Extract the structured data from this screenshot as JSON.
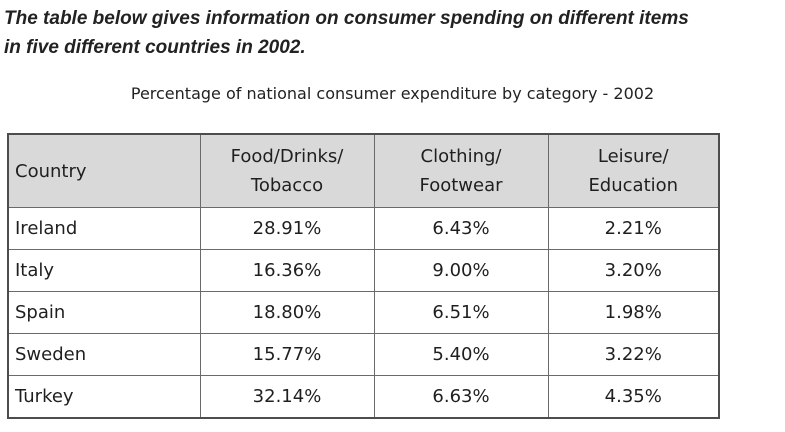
{
  "heading": {
    "line1": "The table below gives information on consumer spending on different items",
    "line2": "in five different countries in 2002."
  },
  "chart_data": {
    "type": "table",
    "title": "Percentage of national consumer expenditure by category - 2002",
    "columns": [
      {
        "line1": "Country",
        "line2": ""
      },
      {
        "line1": "Food/Drinks/",
        "line2": "Tobacco"
      },
      {
        "line1": "Clothing/",
        "line2": "Footwear"
      },
      {
        "line1": "Leisure/",
        "line2": "Education"
      }
    ],
    "rows": [
      {
        "country": "Ireland",
        "values": [
          "28.91%",
          "6.43%",
          "2.21%"
        ]
      },
      {
        "country": "Italy",
        "values": [
          "16.36%",
          "9.00%",
          "3.20%"
        ]
      },
      {
        "country": "Spain",
        "values": [
          "18.80%",
          "6.51%",
          "1.98%"
        ]
      },
      {
        "country": "Sweden",
        "values": [
          "15.77%",
          "5.40%",
          "3.22%"
        ]
      },
      {
        "country": "Turkey",
        "values": [
          "32.14%",
          "6.63%",
          "4.35%"
        ]
      }
    ]
  }
}
